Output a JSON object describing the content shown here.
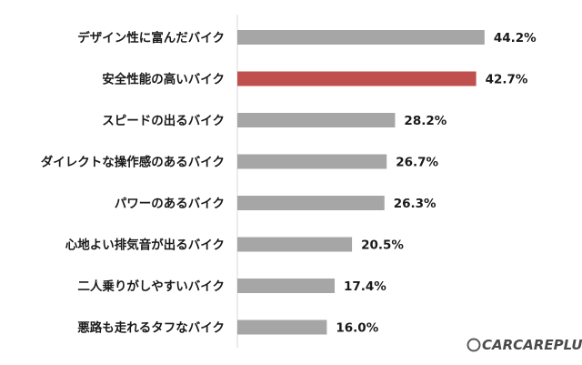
{
  "chart_data": {
    "type": "bar",
    "orientation": "horizontal",
    "categories": [
      "デザイン性に富んだバイク",
      "安全性能の高いバイク",
      "スピードの出るバイク",
      "ダイレクトな操作感のあるバイク",
      "パワーのあるバイク",
      "心地よい排気音が出るバイク",
      "二人乗りがしやすいバイク",
      "悪路も走れるタフなバイク"
    ],
    "values": [
      44.2,
      42.7,
      28.2,
      26.7,
      26.3,
      20.5,
      17.4,
      16.0
    ],
    "value_labels": [
      "44.2%",
      "42.7%",
      "28.2%",
      "26.7%",
      "26.3%",
      "20.5%",
      "17.4%",
      "16.0%"
    ],
    "highlight_index": 1,
    "title": "",
    "xlabel": "",
    "ylabel": "",
    "grid": false,
    "colors": {
      "bar": "#a6a6a6",
      "highlight": "#c0504d",
      "axis": "#d9d9d9",
      "text": "#1a1a1a"
    }
  },
  "watermark": {
    "text": "CARCAREPLUS"
  }
}
